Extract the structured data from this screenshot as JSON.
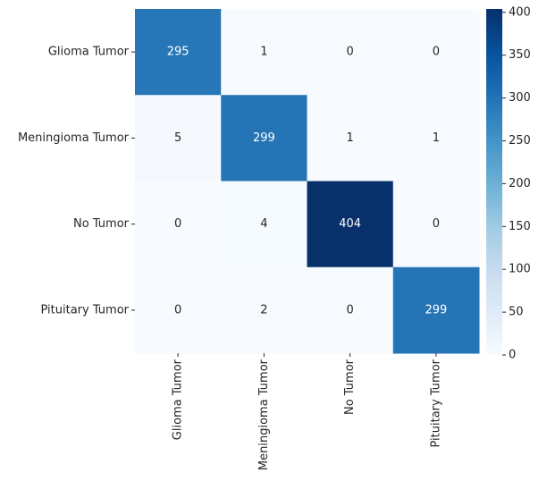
{
  "chart_data": {
    "type": "heatmap",
    "title": "",
    "xlabel": "",
    "ylabel": "",
    "row_labels": [
      "Glioma Tumor",
      "Meningioma Tumor",
      "No Tumor",
      "Pituitary Tumor"
    ],
    "col_labels": [
      "Glioma Tumor",
      "Meningioma Tumor",
      "No Tumor",
      "Pituitary Tumor"
    ],
    "values": [
      [
        295,
        1,
        0,
        0
      ],
      [
        5,
        299,
        1,
        1
      ],
      [
        0,
        4,
        404,
        0
      ],
      [
        0,
        2,
        0,
        299
      ]
    ],
    "colormap": "Blues",
    "vmin": 0,
    "vmax": 404,
    "colorbar_ticks": [
      0,
      50,
      100,
      150,
      200,
      250,
      300,
      350,
      400
    ],
    "colorbar_tick_labels": [
      "0",
      "50",
      "100",
      "150",
      "200",
      "250",
      "300",
      "350",
      "400"
    ],
    "grid": false,
    "legend": "colorbar-right"
  }
}
